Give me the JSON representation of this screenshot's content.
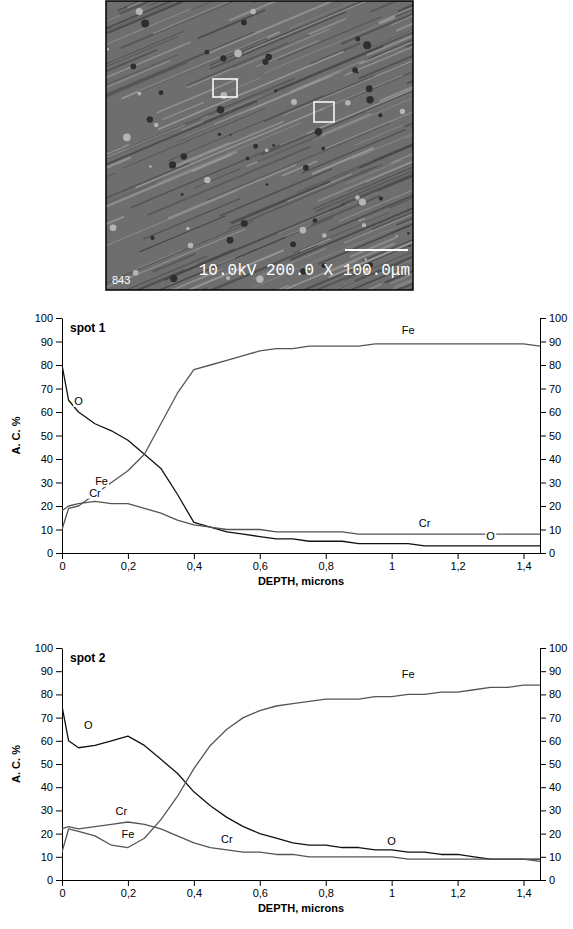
{
  "micrograph": {
    "label": "10.0kV 200.0 X 100.0μm",
    "id_label": "843"
  },
  "chart_data": [
    {
      "type": "line",
      "title": "spot 1",
      "x_label": "DEPTH, microns",
      "y_label": "A. C. %",
      "x": [
        0,
        0.02,
        0.05,
        0.1,
        0.15,
        0.2,
        0.25,
        0.3,
        0.35,
        0.4,
        0.45,
        0.5,
        0.55,
        0.6,
        0.65,
        0.7,
        0.75,
        0.8,
        0.85,
        0.9,
        0.95,
        1.0,
        1.05,
        1.1,
        1.15,
        1.2,
        1.25,
        1.3,
        1.35,
        1.4,
        1.45
      ],
      "series": [
        {
          "name": "O",
          "color": "#111111",
          "values": [
            80,
            65,
            60,
            55,
            52,
            48,
            42,
            36,
            25,
            13,
            11,
            9,
            8,
            7,
            6,
            6,
            5,
            5,
            5,
            4,
            4,
            4,
            4,
            3,
            3,
            3,
            3,
            3,
            3,
            3,
            3
          ]
        },
        {
          "name": "Fe",
          "color": "#555555",
          "values": [
            10,
            19,
            20,
            25,
            30,
            35,
            42,
            55,
            68,
            78,
            80,
            82,
            84,
            86,
            87,
            87,
            88,
            88,
            88,
            88,
            89,
            89,
            89,
            89,
            89,
            89,
            89,
            89,
            89,
            89,
            88
          ]
        },
        {
          "name": "Cr",
          "color": "#555555",
          "values": [
            18,
            20,
            21,
            22,
            21,
            21,
            19,
            17,
            14,
            12,
            11,
            10,
            10,
            10,
            9,
            9,
            9,
            9,
            9,
            8,
            8,
            8,
            8,
            8,
            8,
            8,
            8,
            8,
            8,
            8,
            8
          ]
        }
      ],
      "xlim": [
        0,
        1.45
      ],
      "xticks": [
        0,
        {
          "value": 0.2,
          "label": "0,2"
        },
        {
          "value": 0.4,
          "label": "0,4"
        },
        {
          "value": 0.6,
          "label": "0,6"
        },
        {
          "value": 0.8,
          "label": "0,8"
        },
        1,
        {
          "value": 1.2,
          "label": "1,2"
        },
        {
          "value": 1.4,
          "label": "1,4"
        }
      ],
      "ylim": [
        0,
        100
      ],
      "yticks": [
        0,
        10,
        20,
        30,
        40,
        50,
        60,
        70,
        80,
        90,
        100
      ],
      "y2lim": [
        0,
        100
      ],
      "y2ticks": [
        0,
        10,
        20,
        30,
        40,
        50,
        60,
        70,
        80,
        90,
        100
      ],
      "grid": false
    },
    {
      "type": "line",
      "title": "spot 2",
      "x_label": "DEPTH, microns",
      "y_label": "A. C. %",
      "x": [
        0,
        0.02,
        0.05,
        0.1,
        0.15,
        0.2,
        0.25,
        0.3,
        0.35,
        0.4,
        0.45,
        0.5,
        0.55,
        0.6,
        0.65,
        0.7,
        0.75,
        0.8,
        0.85,
        0.9,
        0.95,
        1.0,
        1.05,
        1.1,
        1.15,
        1.2,
        1.25,
        1.3,
        1.35,
        1.4,
        1.45
      ],
      "series": [
        {
          "name": "O",
          "color": "#111111",
          "values": [
            75,
            60,
            57,
            58,
            60,
            62,
            58,
            52,
            46,
            38,
            32,
            27,
            23,
            20,
            18,
            16,
            15,
            15,
            14,
            14,
            13,
            13,
            12,
            12,
            11,
            11,
            10,
            9,
            9,
            9,
            9
          ]
        },
        {
          "name": "Fe",
          "color": "#555555",
          "values": [
            12,
            22,
            21,
            19,
            15,
            14,
            18,
            26,
            36,
            48,
            58,
            65,
            70,
            73,
            75,
            76,
            77,
            78,
            78,
            78,
            79,
            79,
            80,
            80,
            81,
            81,
            82,
            83,
            83,
            84,
            84
          ]
        },
        {
          "name": "Cr",
          "color": "#555555",
          "values": [
            22,
            23,
            22,
            23,
            24,
            25,
            24,
            22,
            19,
            16,
            14,
            13,
            12,
            12,
            11,
            11,
            10,
            10,
            10,
            10,
            10,
            10,
            9,
            9,
            9,
            9,
            9,
            9,
            9,
            9,
            8
          ]
        }
      ],
      "xlim": [
        0,
        1.45
      ],
      "xticks": [
        0,
        {
          "value": 0.2,
          "label": "0,2"
        },
        {
          "value": 0.4,
          "label": "0,4"
        },
        {
          "value": 0.6,
          "label": "0,6"
        },
        {
          "value": 0.8,
          "label": "0,8"
        },
        1,
        {
          "value": 1.2,
          "label": "1,2"
        },
        {
          "value": 1.4,
          "label": "1,4"
        }
      ],
      "ylim": [
        0,
        100
      ],
      "yticks": [
        0,
        10,
        20,
        30,
        40,
        50,
        60,
        70,
        80,
        90,
        100
      ],
      "y2lim": [
        0,
        100
      ],
      "y2ticks": [
        0,
        10,
        20,
        30,
        40,
        50,
        60,
        70,
        80,
        90,
        100
      ],
      "grid": false
    }
  ]
}
